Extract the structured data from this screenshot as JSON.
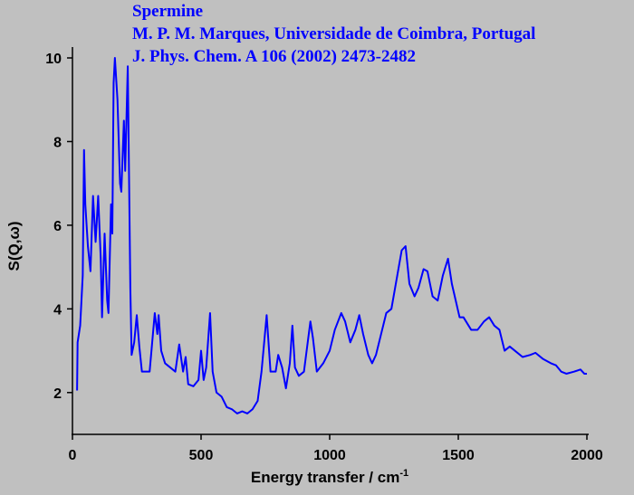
{
  "chart_data": {
    "type": "line",
    "title": "Spermine",
    "subtitle": [
      "M. P. M. Marques, Universidade de Coimbra, Portugal",
      "J. Phys. Chem. A 106 (2002) 2473-2482"
    ],
    "x_label": "Energy transfer / cm",
    "x_label_superscript": "-1",
    "y_label": "S(Q,ω)",
    "xlim": [
      0,
      2000
    ],
    "ylim": [
      1,
      10
    ],
    "xticks": [
      0,
      500,
      1000,
      1500,
      2000
    ],
    "yticks": [
      2,
      4,
      6,
      8,
      10
    ],
    "series": [
      {
        "name": "Spermine",
        "color": "#0000ff",
        "x": [
          18,
          20,
          30,
          40,
          45,
          50,
          60,
          70,
          80,
          90,
          100,
          110,
          115,
          125,
          135,
          140,
          150,
          155,
          160,
          165,
          175,
          185,
          190,
          200,
          205,
          215,
          225,
          230,
          240,
          250,
          260,
          270,
          300,
          320,
          330,
          335,
          345,
          360,
          380,
          400,
          415,
          430,
          440,
          450,
          470,
          490,
          500,
          510,
          520,
          535,
          545,
          560,
          580,
          600,
          620,
          640,
          660,
          680,
          700,
          720,
          735,
          755,
          770,
          790,
          800,
          815,
          830,
          845,
          855,
          865,
          880,
          900,
          925,
          935,
          950,
          975,
          1000,
          1020,
          1045,
          1060,
          1080,
          1100,
          1115,
          1130,
          1150,
          1165,
          1180,
          1200,
          1220,
          1240,
          1260,
          1280,
          1295,
          1310,
          1330,
          1345,
          1365,
          1380,
          1400,
          1420,
          1440,
          1460,
          1475,
          1490,
          1505,
          1520,
          1550,
          1575,
          1600,
          1620,
          1640,
          1660,
          1680,
          1700,
          1720,
          1750,
          1780,
          1800,
          1830,
          1860,
          1880,
          1900,
          1920,
          1950,
          1975,
          1990,
          2000
        ],
        "values": [
          2.05,
          3.2,
          3.6,
          4.8,
          7.8,
          6.5,
          5.5,
          4.9,
          6.7,
          5.6,
          6.7,
          5.2,
          3.8,
          5.8,
          4.2,
          3.9,
          6.5,
          5.8,
          9.4,
          10.0,
          9.0,
          7.0,
          6.8,
          8.5,
          7.3,
          9.8,
          4.5,
          2.9,
          3.2,
          3.85,
          3.1,
          2.5,
          2.5,
          3.9,
          3.4,
          3.85,
          3.0,
          2.7,
          2.6,
          2.5,
          3.15,
          2.5,
          2.85,
          2.2,
          2.15,
          2.3,
          3.0,
          2.3,
          2.6,
          3.9,
          2.5,
          2.0,
          1.9,
          1.65,
          1.6,
          1.5,
          1.55,
          1.5,
          1.6,
          1.8,
          2.5,
          3.85,
          2.5,
          2.5,
          2.9,
          2.6,
          2.1,
          2.7,
          3.6,
          2.6,
          2.4,
          2.5,
          3.7,
          3.3,
          2.5,
          2.7,
          3.0,
          3.5,
          3.9,
          3.7,
          3.2,
          3.5,
          3.85,
          3.4,
          2.9,
          2.7,
          2.9,
          3.4,
          3.9,
          4.0,
          4.7,
          5.4,
          5.5,
          4.6,
          4.3,
          4.5,
          4.95,
          4.9,
          4.3,
          4.2,
          4.8,
          5.2,
          4.6,
          4.2,
          3.8,
          3.8,
          3.5,
          3.5,
          3.7,
          3.8,
          3.6,
          3.5,
          3.0,
          3.1,
          3.0,
          2.85,
          2.9,
          2.95,
          2.8,
          2.7,
          2.65,
          2.5,
          2.45,
          2.5,
          2.55,
          2.45,
          2.45
        ]
      }
    ]
  }
}
